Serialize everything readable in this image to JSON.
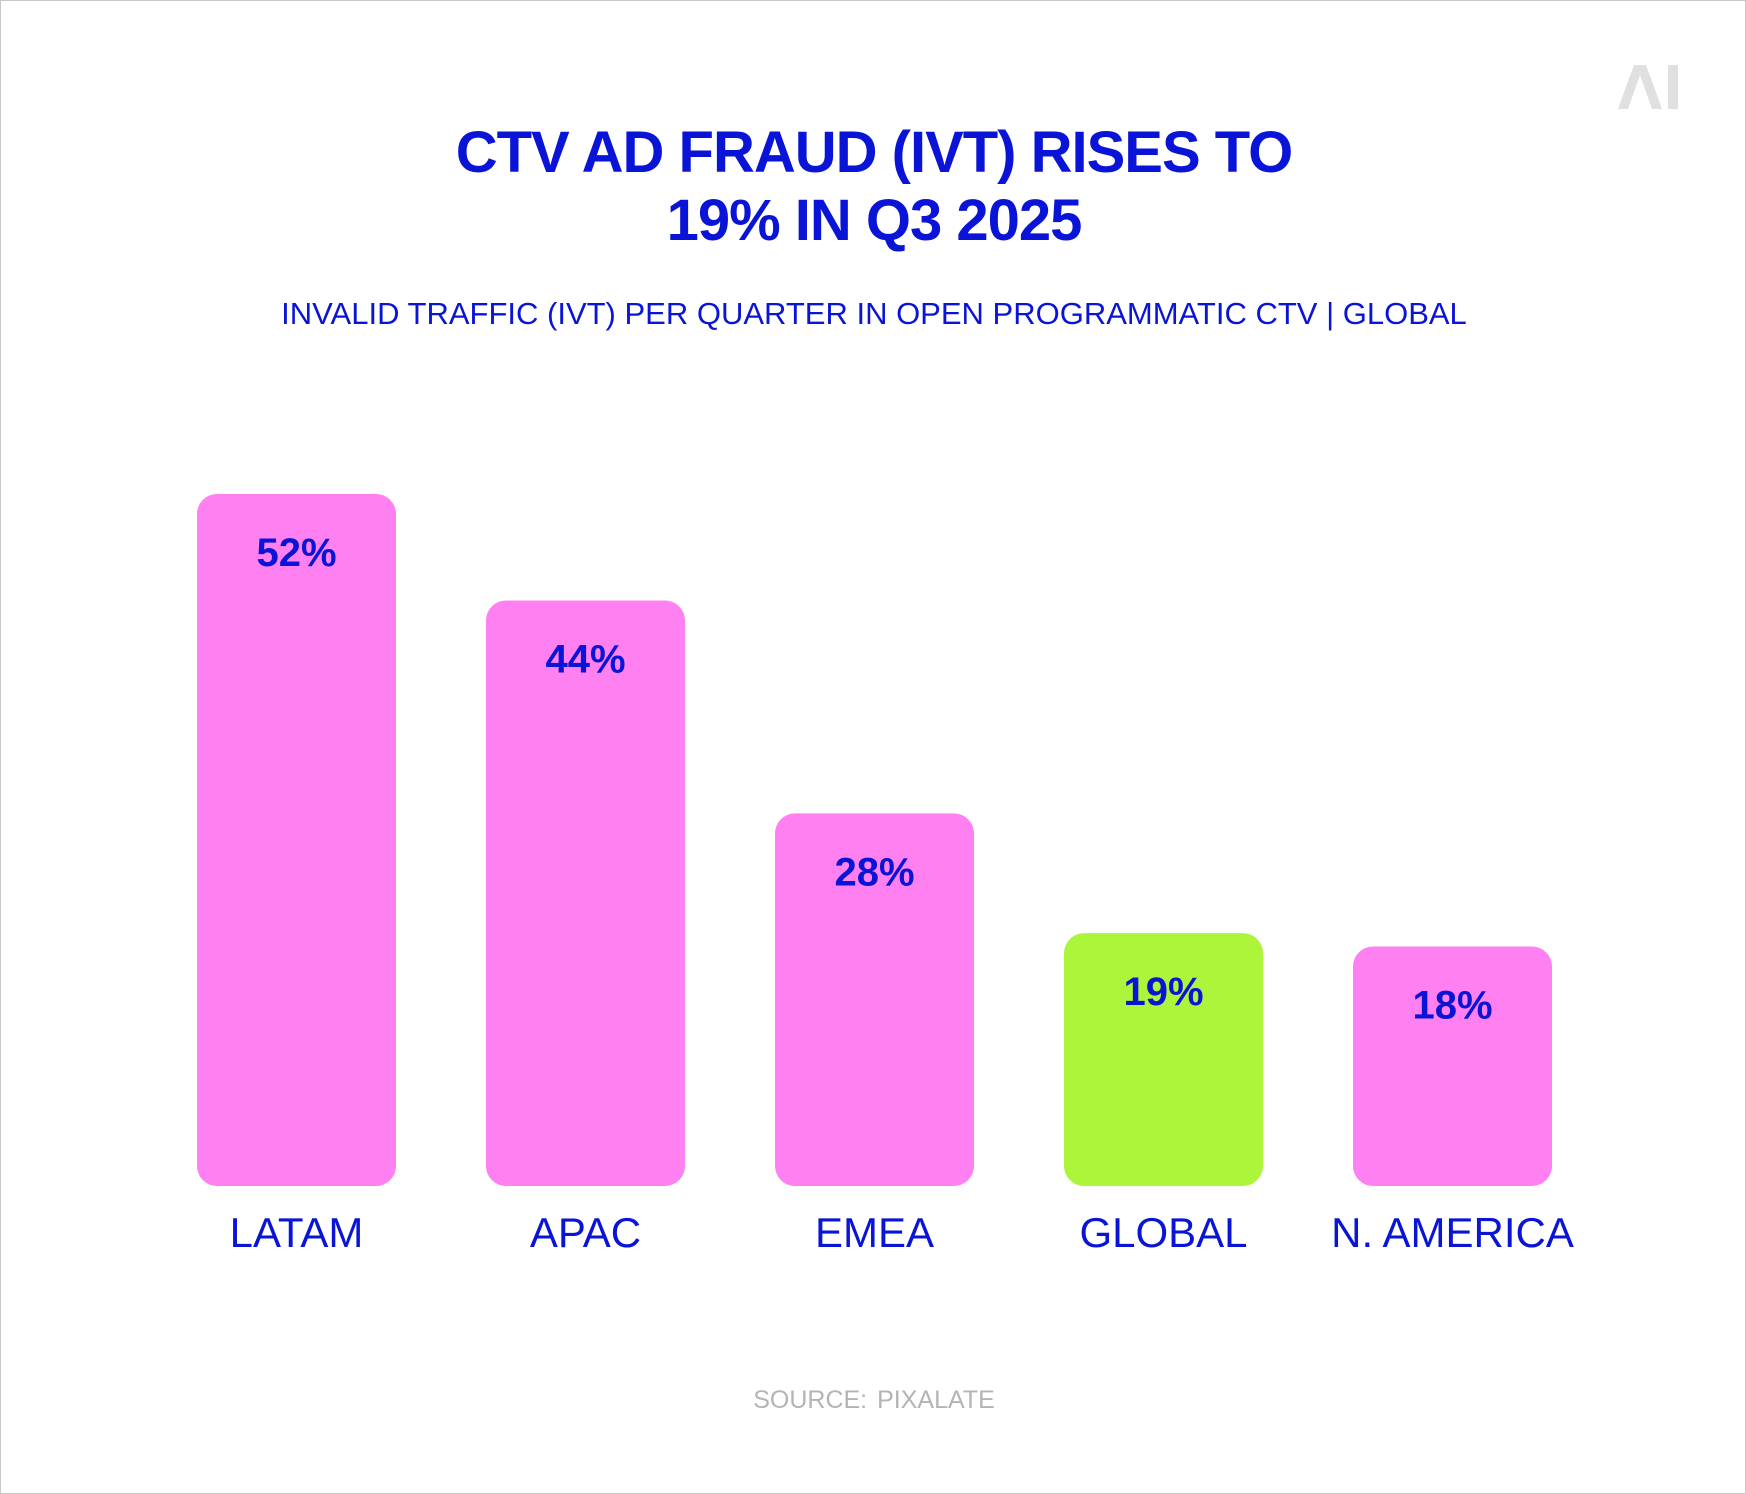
{
  "title_line1": "CTV AD FRAUD (IVT) RISES TO",
  "title_line2": "19% IN Q3 2025",
  "subtitle": "INVALID TRAFFIC (IVT) PER QUARTER IN OPEN PROGRAMMATIC CTV  |  GLOBAL",
  "source_label": "SOURCE:",
  "source_name": "PIXALATE",
  "logo_text": "AI",
  "colors": {
    "text_primary": "#0a14d6",
    "bar_default": "#ff80f0",
    "bar_highlight": "#adf53b",
    "source_text": "#b4b4b4",
    "logo": "#e0e0e0"
  },
  "chart_data": {
    "type": "bar",
    "categories": [
      "LATAM",
      "APAC",
      "EMEA",
      "GLOBAL",
      "N. AMERICA"
    ],
    "values": [
      52,
      44,
      28,
      19,
      18
    ],
    "value_labels": [
      "52%",
      "44%",
      "28%",
      "19%",
      "18%"
    ],
    "highlight": "GLOBAL",
    "unit": "%",
    "ylim": [
      0,
      52
    ],
    "grid": false,
    "legend": "none"
  }
}
